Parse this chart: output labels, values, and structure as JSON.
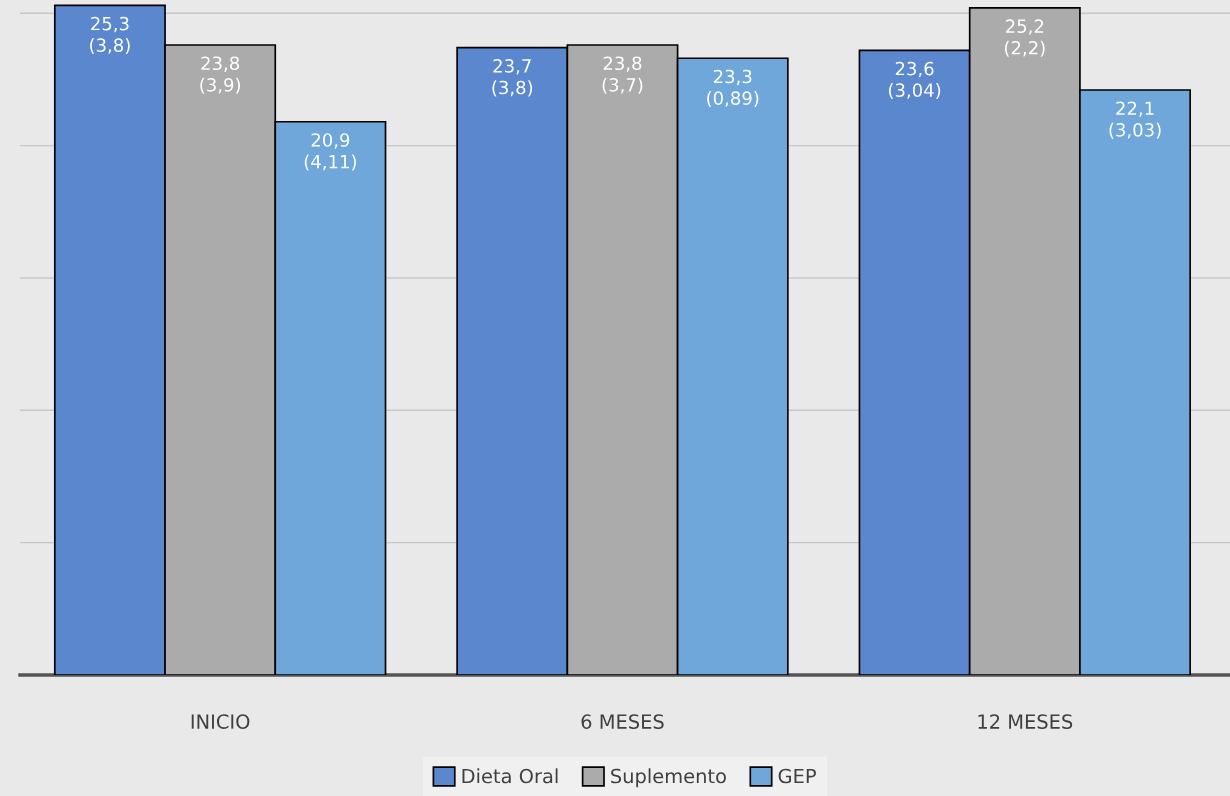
{
  "chart_data": {
    "type": "bar",
    "categories": [
      "INICIO",
      "6 MESES",
      "12 MESES"
    ],
    "series": [
      {
        "name": "Dieta Oral",
        "color": "#5b87cf",
        "values": [
          25.3,
          23.7,
          23.6
        ],
        "value_labels": [
          "25,3\n(3,8)",
          "23,7\n(3,8)",
          "23,6\n(3,04)"
        ]
      },
      {
        "name": "Suplemento",
        "color": "#ababab",
        "values": [
          23.8,
          23.8,
          25.2
        ],
        "value_labels": [
          "23,8\n(3,9)",
          "23,8\n(3,7)",
          "25,2\n(2,2)"
        ]
      },
      {
        "name": "GEP",
        "color": "#6fa7da",
        "values": [
          20.9,
          23.3,
          22.1
        ],
        "value_labels": [
          "20,9\n(4,11)",
          "23,3\n(0,89)",
          "22,1\n(3,03)"
        ]
      }
    ],
    "ylim": [
      0,
      25.5
    ],
    "yticks": [
      {
        "value": 5,
        "label": null
      },
      {
        "value": 10,
        "label": null
      },
      {
        "value": 15,
        "label": null
      },
      {
        "value": 20,
        "label": null
      },
      {
        "value": 25,
        "label": null
      }
    ],
    "tick_labels": "x",
    "grid": "y",
    "legend": "bottom"
  }
}
